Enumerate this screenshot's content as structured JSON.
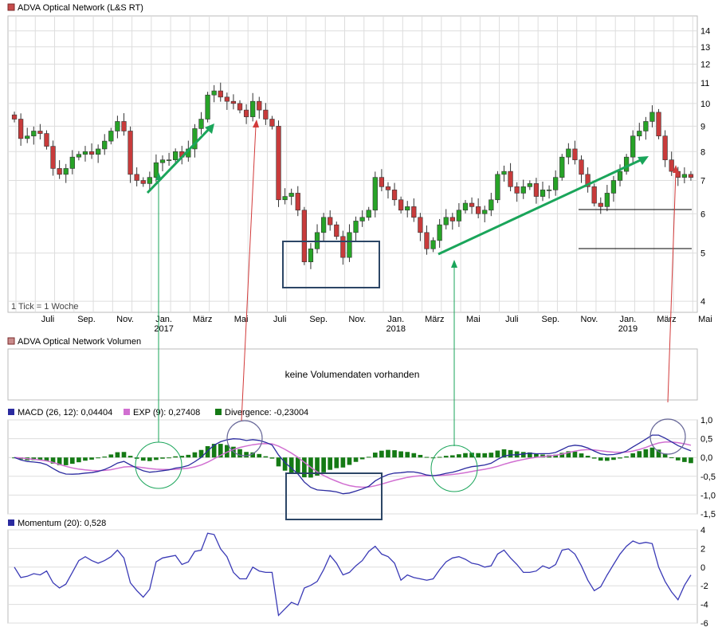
{
  "colors": {
    "up": "#27a327",
    "down": "#c83b3b",
    "macd": "#2b2b9f",
    "exp": "#d16fd1",
    "divergence": "#157a15",
    "momentum": "#3a3ab6",
    "grid": "#dddddd",
    "green_annotation": "#1aa55a",
    "red_annotation": "#d23a3a",
    "box_annotation": "#2c4666",
    "title_square_price": "#c74b4b",
    "title_square_volume": "#c98b8b"
  },
  "price_panel": {
    "title": "ADVA Optical Network (L&S RT)",
    "note": "1 Tick = 1 Woche",
    "y_ticks": [
      "4",
      "5",
      "6",
      "7",
      "8",
      "9",
      "10",
      "11",
      "12",
      "13",
      "14"
    ],
    "month_labels": [
      "Juli",
      "Sep.",
      "Nov.",
      "Jan.",
      "März",
      "Mai",
      "Juli",
      "Sep.",
      "Nov.",
      "Jan.",
      "März",
      "Mai",
      "Juli",
      "Sep.",
      "Nov.",
      "Jan.",
      "März",
      "Mai"
    ],
    "year_labels": [
      "2017",
      "2018",
      "2019"
    ]
  },
  "volume_panel": {
    "title": "ADVA Optical Network Volumen",
    "message": "keine Volumendaten vorhanden"
  },
  "macd_panel": {
    "macd_label": "MACD (26, 12): 0,04404",
    "exp_label": "EXP (9): 0,27408",
    "divergence_label": "Divergence: -0,23004",
    "y_ticks": [
      "1,0",
      "0,5",
      "0,0",
      "-0,5",
      "-1,0",
      "-1,5"
    ]
  },
  "momentum_panel": {
    "label": "Momentum (20): 0,528",
    "y_ticks": [
      "4",
      "2",
      "0",
      "-2",
      "-4",
      "-6"
    ]
  },
  "chart_data": [
    {
      "type": "candlestick",
      "title": "ADVA Optical Network (L&S RT)",
      "scale": "log",
      "ylim": [
        3.8,
        15
      ],
      "x_start": "2016-06",
      "x_end": "2019-05",
      "close": [
        9.3,
        8.5,
        8.6,
        8.8,
        8.7,
        8.2,
        7.4,
        7.2,
        7.4,
        7.8,
        7.9,
        8.0,
        7.9,
        8.1,
        8.4,
        8.8,
        9.2,
        8.8,
        7.2,
        7.0,
        6.9,
        7.1,
        7.6,
        7.7,
        7.7,
        8.0,
        7.8,
        8.1,
        8.9,
        9.3,
        10.4,
        10.6,
        10.3,
        10.1,
        10.0,
        9.7,
        9.4,
        10.1,
        9.7,
        9.3,
        9.0,
        6.4,
        6.5,
        6.6,
        6.1,
        4.8,
        5.1,
        5.5,
        5.9,
        5.7,
        5.4,
        4.9,
        5.5,
        5.8,
        5.9,
        6.1,
        7.1,
        6.8,
        6.7,
        6.4,
        6.1,
        6.2,
        5.9,
        5.5,
        5.1,
        5.3,
        5.7,
        5.9,
        5.8,
        6.1,
        6.3,
        6.2,
        6.0,
        6.1,
        6.4,
        7.2,
        7.3,
        6.8,
        6.6,
        6.8,
        6.9,
        6.5,
        6.7,
        6.7,
        7.1,
        7.8,
        8.1,
        7.7,
        7.2,
        6.8,
        6.3,
        6.2,
        6.6,
        7.0,
        7.3,
        7.8,
        8.6,
        8.8,
        9.2,
        9.6,
        8.6,
        7.7,
        7.3,
        7.1,
        7.2,
        7.1
      ],
      "volume": "keine Volumendaten vorhanden"
    },
    {
      "type": "line",
      "series": [
        {
          "name": "MACD (26, 12)",
          "last": 0.04404
        },
        {
          "name": "EXP (9)",
          "last": 0.27408
        },
        {
          "name": "Divergence",
          "last": -0.23004
        }
      ],
      "ylim": [
        -1.5,
        1.0
      ]
    },
    {
      "type": "line",
      "series": [
        {
          "name": "Momentum (20)",
          "last": 0.528
        }
      ],
      "ylim": [
        -6,
        4
      ]
    }
  ]
}
